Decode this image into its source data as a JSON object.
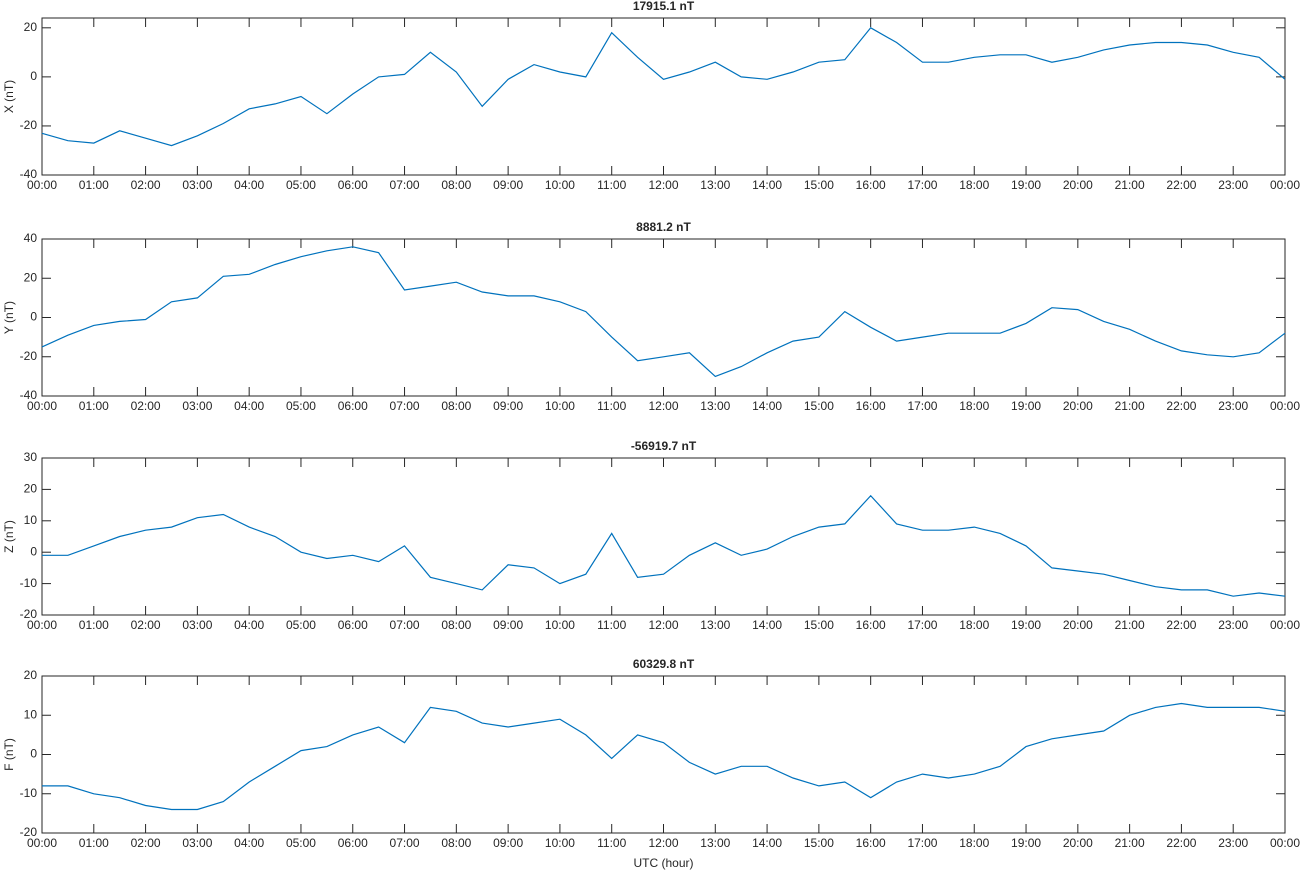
{
  "chart_data": [
    {
      "type": "line",
      "title": "17915.1 nT",
      "ylabel": "X (nT)",
      "x": [
        0,
        0.5,
        1,
        1.5,
        2,
        2.5,
        3,
        3.5,
        4,
        4.5,
        5,
        5.5,
        6,
        6.5,
        7,
        7.5,
        8,
        8.5,
        9,
        9.5,
        10,
        10.5,
        11,
        11.5,
        12,
        12.5,
        13,
        13.5,
        14,
        14.5,
        15,
        15.5,
        16,
        16.5,
        17,
        17.5,
        18,
        18.5,
        19,
        19.5,
        20,
        20.5,
        21,
        21.5,
        22,
        22.5,
        23,
        23.5,
        24
      ],
      "series": [
        {
          "name": "X",
          "color": "#0072bd",
          "values": [
            -23,
            -26,
            -27,
            -22,
            -25,
            -28,
            -24,
            -19,
            -13,
            -11,
            -8,
            -15,
            -7,
            0,
            1,
            10,
            2,
            -12,
            -1,
            5,
            2,
            0,
            18,
            8,
            -1,
            2,
            6,
            0,
            -1,
            2,
            6,
            7,
            20,
            14,
            6,
            6,
            8,
            9,
            9,
            6,
            8,
            11,
            13,
            14,
            14,
            13,
            10,
            8,
            -1
          ]
        }
      ],
      "xlim": [
        0,
        24
      ],
      "ylim": [
        -40,
        24
      ],
      "yticks": [
        -40,
        -20,
        0,
        20
      ],
      "xticks": [
        {
          "value": 0,
          "label": "00:00"
        },
        {
          "value": 1,
          "label": "01:00"
        },
        {
          "value": 2,
          "label": "02:00"
        },
        {
          "value": 3,
          "label": "03:00"
        },
        {
          "value": 4,
          "label": "04:00"
        },
        {
          "value": 5,
          "label": "05:00"
        },
        {
          "value": 6,
          "label": "06:00"
        },
        {
          "value": 7,
          "label": "07:00"
        },
        {
          "value": 8,
          "label": "08:00"
        },
        {
          "value": 9,
          "label": "09:00"
        },
        {
          "value": 10,
          "label": "10:00"
        },
        {
          "value": 11,
          "label": "11:00"
        },
        {
          "value": 12,
          "label": "12:00"
        },
        {
          "value": 13,
          "label": "13:00"
        },
        {
          "value": 14,
          "label": "14:00"
        },
        {
          "value": 15,
          "label": "15:00"
        },
        {
          "value": 16,
          "label": "16:00"
        },
        {
          "value": 17,
          "label": "17:00"
        },
        {
          "value": 18,
          "label": "18:00"
        },
        {
          "value": 19,
          "label": "19:00"
        },
        {
          "value": 20,
          "label": "20:00"
        },
        {
          "value": 21,
          "label": "21:00"
        },
        {
          "value": 22,
          "label": "22:00"
        },
        {
          "value": 23,
          "label": "23:00"
        },
        {
          "value": 24,
          "label": "00:00"
        }
      ]
    },
    {
      "type": "line",
      "title": "8881.2 nT",
      "ylabel": "Y (nT)",
      "x": [
        0,
        0.5,
        1,
        1.5,
        2,
        2.5,
        3,
        3.5,
        4,
        4.5,
        5,
        5.5,
        6,
        6.5,
        7,
        7.5,
        8,
        8.5,
        9,
        9.5,
        10,
        10.5,
        11,
        11.5,
        12,
        12.5,
        13,
        13.5,
        14,
        14.5,
        15,
        15.5,
        16,
        16.5,
        17,
        17.5,
        18,
        18.5,
        19,
        19.5,
        20,
        20.5,
        21,
        21.5,
        22,
        22.5,
        23,
        23.5,
        24
      ],
      "series": [
        {
          "name": "Y",
          "color": "#0072bd",
          "values": [
            -15,
            -9,
            -4,
            -2,
            -1,
            8,
            10,
            21,
            22,
            27,
            31,
            34,
            36,
            33,
            14,
            16,
            18,
            13,
            11,
            11,
            8,
            3,
            -10,
            -22,
            -20,
            -18,
            -30,
            -25,
            -18,
            -12,
            -10,
            3,
            -5,
            -12,
            -10,
            -8,
            -8,
            -8,
            -3,
            5,
            4,
            -2,
            -6,
            -12,
            -17,
            -19,
            -20,
            -18,
            -8
          ]
        }
      ],
      "xlim": [
        0,
        24
      ],
      "ylim": [
        -40,
        40
      ],
      "yticks": [
        -40,
        -20,
        0,
        20,
        40
      ],
      "xticks": [
        {
          "value": 0,
          "label": "00:00"
        },
        {
          "value": 1,
          "label": "01:00"
        },
        {
          "value": 2,
          "label": "02:00"
        },
        {
          "value": 3,
          "label": "03:00"
        },
        {
          "value": 4,
          "label": "04:00"
        },
        {
          "value": 5,
          "label": "05:00"
        },
        {
          "value": 6,
          "label": "06:00"
        },
        {
          "value": 7,
          "label": "07:00"
        },
        {
          "value": 8,
          "label": "08:00"
        },
        {
          "value": 9,
          "label": "09:00"
        },
        {
          "value": 10,
          "label": "10:00"
        },
        {
          "value": 11,
          "label": "11:00"
        },
        {
          "value": 12,
          "label": "12:00"
        },
        {
          "value": 13,
          "label": "13:00"
        },
        {
          "value": 14,
          "label": "14:00"
        },
        {
          "value": 15,
          "label": "15:00"
        },
        {
          "value": 16,
          "label": "16:00"
        },
        {
          "value": 17,
          "label": "17:00"
        },
        {
          "value": 18,
          "label": "18:00"
        },
        {
          "value": 19,
          "label": "19:00"
        },
        {
          "value": 20,
          "label": "20:00"
        },
        {
          "value": 21,
          "label": "21:00"
        },
        {
          "value": 22,
          "label": "22:00"
        },
        {
          "value": 23,
          "label": "23:00"
        },
        {
          "value": 24,
          "label": "00:00"
        }
      ]
    },
    {
      "type": "line",
      "title": "-56919.7 nT",
      "ylabel": "Z (nT)",
      "x": [
        0,
        0.5,
        1,
        1.5,
        2,
        2.5,
        3,
        3.5,
        4,
        4.5,
        5,
        5.5,
        6,
        6.5,
        7,
        7.5,
        8,
        8.5,
        9,
        9.5,
        10,
        10.5,
        11,
        11.5,
        12,
        12.5,
        13,
        13.5,
        14,
        14.5,
        15,
        15.5,
        16,
        16.5,
        17,
        17.5,
        18,
        18.5,
        19,
        19.5,
        20,
        20.5,
        21,
        21.5,
        22,
        22.5,
        23,
        23.5,
        24
      ],
      "series": [
        {
          "name": "Z",
          "color": "#0072bd",
          "values": [
            -1,
            -1,
            2,
            5,
            7,
            8,
            11,
            12,
            8,
            5,
            0,
            -2,
            -1,
            -3,
            2,
            -8,
            -10,
            -12,
            -4,
            -5,
            -10,
            -7,
            6,
            -8,
            -7,
            -1,
            3,
            -1,
            1,
            5,
            8,
            9,
            18,
            9,
            7,
            7,
            8,
            6,
            2,
            -5,
            -6,
            -7,
            -9,
            -11,
            -12,
            -12,
            -14,
            -13,
            -14
          ]
        }
      ],
      "xlim": [
        0,
        24
      ],
      "ylim": [
        -20,
        30
      ],
      "yticks": [
        -20,
        -10,
        0,
        10,
        20,
        30
      ],
      "xticks": [
        {
          "value": 0,
          "label": "00:00"
        },
        {
          "value": 1,
          "label": "01:00"
        },
        {
          "value": 2,
          "label": "02:00"
        },
        {
          "value": 3,
          "label": "03:00"
        },
        {
          "value": 4,
          "label": "04:00"
        },
        {
          "value": 5,
          "label": "05:00"
        },
        {
          "value": 6,
          "label": "06:00"
        },
        {
          "value": 7,
          "label": "07:00"
        },
        {
          "value": 8,
          "label": "08:00"
        },
        {
          "value": 9,
          "label": "09:00"
        },
        {
          "value": 10,
          "label": "10:00"
        },
        {
          "value": 11,
          "label": "11:00"
        },
        {
          "value": 12,
          "label": "12:00"
        },
        {
          "value": 13,
          "label": "13:00"
        },
        {
          "value": 14,
          "label": "14:00"
        },
        {
          "value": 15,
          "label": "15:00"
        },
        {
          "value": 16,
          "label": "16:00"
        },
        {
          "value": 17,
          "label": "17:00"
        },
        {
          "value": 18,
          "label": "18:00"
        },
        {
          "value": 19,
          "label": "19:00"
        },
        {
          "value": 20,
          "label": "20:00"
        },
        {
          "value": 21,
          "label": "21:00"
        },
        {
          "value": 22,
          "label": "22:00"
        },
        {
          "value": 23,
          "label": "23:00"
        },
        {
          "value": 24,
          "label": "00:00"
        }
      ]
    },
    {
      "type": "line",
      "title": "60329.8 nT",
      "ylabel": "F (nT)",
      "xlabel": "UTC (hour)",
      "x": [
        0,
        0.5,
        1,
        1.5,
        2,
        2.5,
        3,
        3.5,
        4,
        4.5,
        5,
        5.5,
        6,
        6.5,
        7,
        7.5,
        8,
        8.5,
        9,
        9.5,
        10,
        10.5,
        11,
        11.5,
        12,
        12.5,
        13,
        13.5,
        14,
        14.5,
        15,
        15.5,
        16,
        16.5,
        17,
        17.5,
        18,
        18.5,
        19,
        19.5,
        20,
        20.5,
        21,
        21.5,
        22,
        22.5,
        23,
        23.5,
        24
      ],
      "series": [
        {
          "name": "F",
          "color": "#0072bd",
          "values": [
            -8,
            -8,
            -10,
            -11,
            -13,
            -14,
            -14,
            -12,
            -7,
            -3,
            1,
            2,
            5,
            7,
            3,
            12,
            11,
            8,
            7,
            8,
            9,
            5,
            -1,
            5,
            3,
            -2,
            -5,
            -3,
            -3,
            -6,
            -8,
            -7,
            -11,
            -7,
            -5,
            -6,
            -5,
            -3,
            2,
            4,
            5,
            6,
            10,
            12,
            13,
            12,
            12,
            12,
            11
          ]
        }
      ],
      "xlim": [
        0,
        24
      ],
      "ylim": [
        -20,
        20
      ],
      "yticks": [
        -20,
        -10,
        0,
        10,
        20
      ],
      "xticks": [
        {
          "value": 0,
          "label": "00:00"
        },
        {
          "value": 1,
          "label": "01:00"
        },
        {
          "value": 2,
          "label": "02:00"
        },
        {
          "value": 3,
          "label": "03:00"
        },
        {
          "value": 4,
          "label": "04:00"
        },
        {
          "value": 5,
          "label": "05:00"
        },
        {
          "value": 6,
          "label": "06:00"
        },
        {
          "value": 7,
          "label": "07:00"
        },
        {
          "value": 8,
          "label": "08:00"
        },
        {
          "value": 9,
          "label": "09:00"
        },
        {
          "value": 10,
          "label": "10:00"
        },
        {
          "value": 11,
          "label": "11:00"
        },
        {
          "value": 12,
          "label": "12:00"
        },
        {
          "value": 13,
          "label": "13:00"
        },
        {
          "value": 14,
          "label": "14:00"
        },
        {
          "value": 15,
          "label": "15:00"
        },
        {
          "value": 16,
          "label": "16:00"
        },
        {
          "value": 17,
          "label": "17:00"
        },
        {
          "value": 18,
          "label": "18:00"
        },
        {
          "value": 19,
          "label": "19:00"
        },
        {
          "value": 20,
          "label": "20:00"
        },
        {
          "value": 21,
          "label": "21:00"
        },
        {
          "value": 22,
          "label": "22:00"
        },
        {
          "value": 23,
          "label": "23:00"
        },
        {
          "value": 24,
          "label": "00:00"
        }
      ]
    }
  ]
}
